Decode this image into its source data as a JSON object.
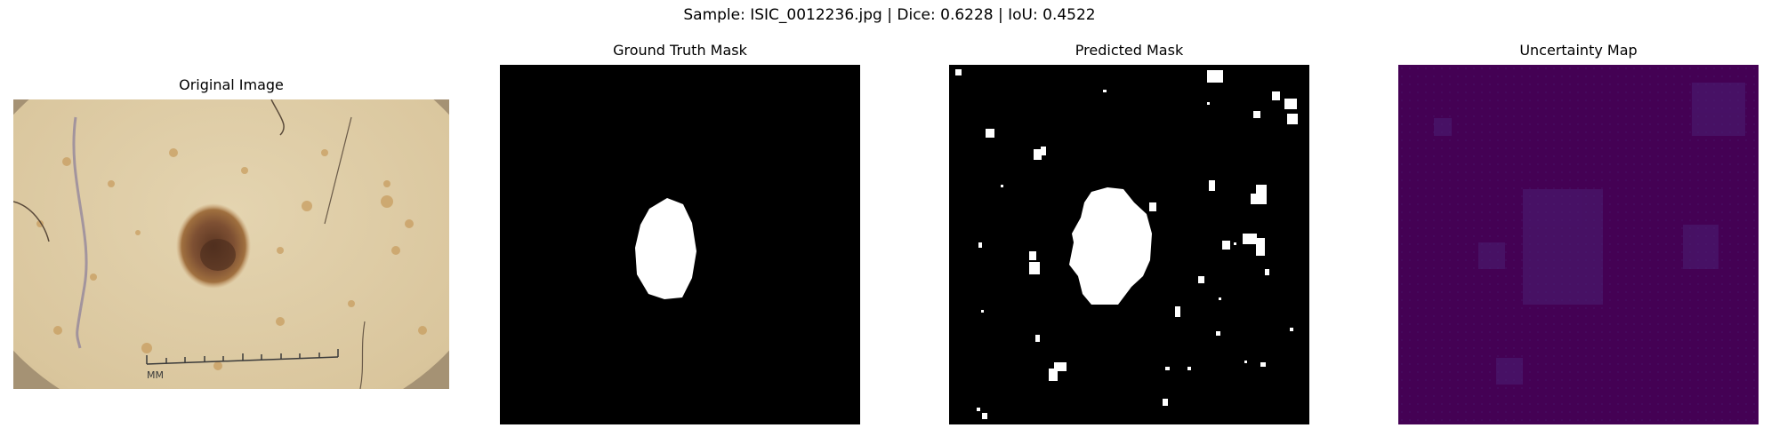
{
  "figure": {
    "suptitle": "Sample: ISIC_0012236.jpg | Dice: 0.6228 | IoU: 0.4522"
  },
  "panels": [
    {
      "title": "Original Image",
      "content": "dermoscopy photo of a pigmented skin lesion with ruler",
      "ruler_label": "MM"
    },
    {
      "title": "Ground Truth Mask",
      "content": "binary mask: single white oval on black"
    },
    {
      "title": "Predicted Mask",
      "content": "binary mask: white central blob plus scattered small white specks on black"
    },
    {
      "title": "Uncertainty Map",
      "content": "near-uniform dark purple (viridis low) map with faint grid-like texture"
    }
  ],
  "colors": {
    "background": "#ffffff",
    "mask_fg": "#ffffff",
    "mask_bg": "#000000",
    "uncertainty_base": "#440154",
    "skin": "#dcc9a2",
    "lesion": "#8a5a3a"
  }
}
